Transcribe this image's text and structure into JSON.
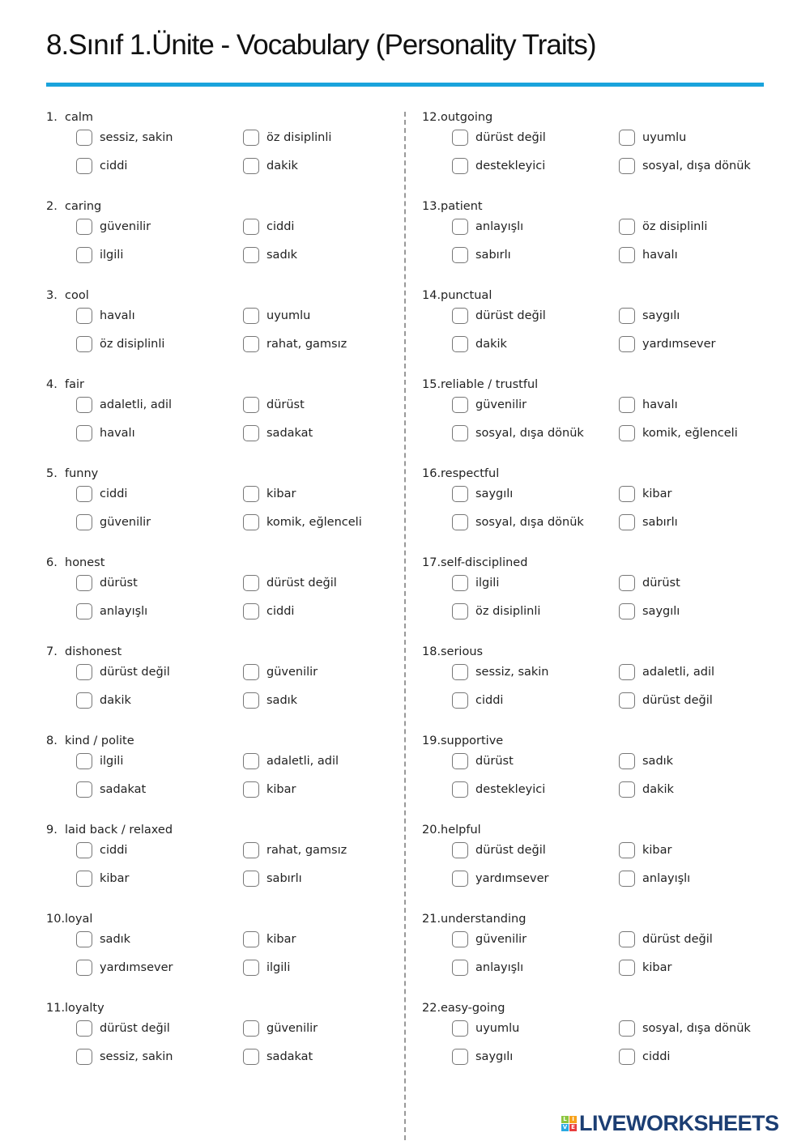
{
  "title": "8.Sınıf 1.Ünite - Vocabulary (Personality Traits)",
  "colors": {
    "accent": "#1aa3dc",
    "logo": "#1c3e73"
  },
  "questions": [
    {
      "num": "1.",
      "word": "calm",
      "options": [
        "sessiz, sakin",
        "öz disiplinli",
        "ciddi",
        "dakik"
      ]
    },
    {
      "num": "2.",
      "word": "caring",
      "options": [
        "güvenilir",
        "ciddi",
        "ilgili",
        "sadık"
      ]
    },
    {
      "num": "3.",
      "word": "cool",
      "options": [
        "havalı",
        "uyumlu",
        "öz disiplinli",
        "rahat, gamsız"
      ]
    },
    {
      "num": "4.",
      "word": "fair",
      "options": [
        "adaletli, adil",
        "dürüst",
        "havalı",
        "sadakat"
      ]
    },
    {
      "num": "5.",
      "word": "funny",
      "options": [
        "ciddi",
        "kibar",
        "güvenilir",
        "komik, eğlenceli"
      ]
    },
    {
      "num": "6.",
      "word": "honest",
      "options": [
        "dürüst",
        "dürüst değil",
        "anlayışlı",
        "ciddi"
      ]
    },
    {
      "num": "7.",
      "word": "dishonest",
      "options": [
        "dürüst değil",
        "güvenilir",
        "dakik",
        "sadık"
      ]
    },
    {
      "num": "8.",
      "word": "kind / polite",
      "options": [
        "ilgili",
        "adaletli, adil",
        "sadakat",
        "kibar"
      ]
    },
    {
      "num": "9.",
      "word": "laid back / relaxed",
      "options": [
        "ciddi",
        "rahat, gamsız",
        "kibar",
        "sabırlı"
      ]
    },
    {
      "num": "10.",
      "word": "loyal",
      "options": [
        "sadık",
        "kibar",
        "yardımsever",
        "ilgili"
      ]
    },
    {
      "num": "11.",
      "word": "loyalty",
      "options": [
        "dürüst değil",
        "güvenilir",
        "sessiz, sakin",
        "sadakat"
      ]
    },
    {
      "num": "12.",
      "word": "outgoing",
      "options": [
        "dürüst değil",
        "uyumlu",
        "destekleyici",
        "sosyal, dışa dönük"
      ]
    },
    {
      "num": "13.",
      "word": "patient",
      "options": [
        "anlayışlı",
        "öz disiplinli",
        "sabırlı",
        "havalı"
      ]
    },
    {
      "num": "14.",
      "word": "punctual",
      "options": [
        "dürüst değil",
        "saygılı",
        "dakik",
        "yardımsever"
      ]
    },
    {
      "num": "15.",
      "word": "reliable / trustful",
      "options": [
        "güvenilir",
        "havalı",
        "sosyal, dışa dönük",
        "komik, eğlenceli"
      ]
    },
    {
      "num": "16.",
      "word": "respectful",
      "options": [
        "saygılı",
        "kibar",
        "sosyal, dışa dönük",
        "sabırlı"
      ]
    },
    {
      "num": "17.",
      "word": "self-disciplined",
      "options": [
        "ilgili",
        "dürüst",
        "öz disiplinli",
        "saygılı"
      ]
    },
    {
      "num": "18.",
      "word": "serious",
      "options": [
        "sessiz, sakin",
        "adaletli, adil",
        "ciddi",
        "dürüst değil"
      ]
    },
    {
      "num": "19.",
      "word": "supportive",
      "options": [
        "dürüst",
        "sadık",
        "destekleyici",
        "dakik"
      ]
    },
    {
      "num": "20.",
      "word": "helpful",
      "options": [
        "dürüst değil",
        "kibar",
        "yardımsever",
        "anlayışlı"
      ]
    },
    {
      "num": "21.",
      "word": "understanding",
      "options": [
        "güvenilir",
        "dürüst değil",
        "anlayışlı",
        "kibar"
      ]
    },
    {
      "num": "22.",
      "word": "easy-going",
      "options": [
        "uyumlu",
        "sosyal, dışa dönük",
        "saygılı",
        "ciddi"
      ]
    }
  ],
  "logo": {
    "text": "LIVEWORKSHEETS",
    "tiles": [
      "L",
      "I",
      "V",
      "E"
    ]
  }
}
